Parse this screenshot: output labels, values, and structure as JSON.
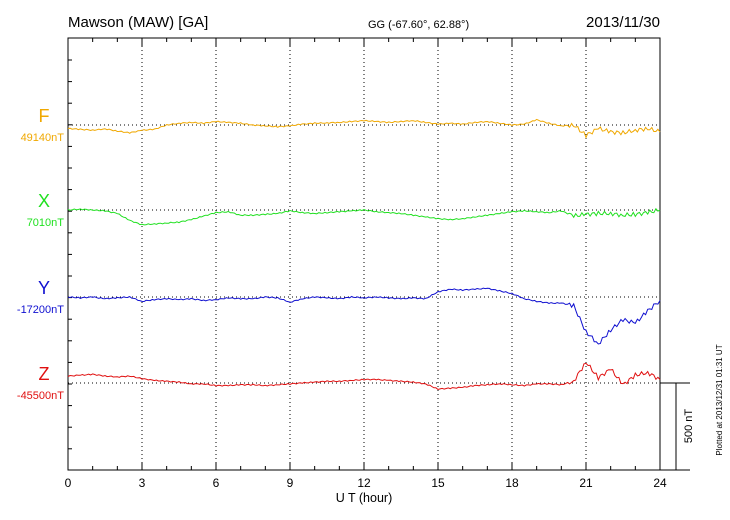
{
  "header": {
    "station": "Mawson (MAW)  [GA]",
    "coordinates": "GG (-67.60°,  62.88°)",
    "date": "2013/11/30"
  },
  "side_note": "Plotted at 2013/12/31 01:31  UT",
  "scale_label": "500 nT",
  "chart_data": {
    "type": "line",
    "xlabel": "U T (hour)",
    "xlim": [
      0,
      24
    ],
    "xticks": [
      "0",
      "3",
      "6",
      "9",
      "12",
      "15",
      "18",
      "21",
      "24"
    ],
    "x": [
      0,
      0.5,
      1,
      1.5,
      2,
      2.5,
      3,
      3.5,
      4,
      4.5,
      5,
      5.5,
      6,
      6.5,
      7,
      7.5,
      8,
      8.5,
      9,
      9.5,
      10,
      10.5,
      11,
      11.5,
      12,
      12.5,
      13,
      13.5,
      14,
      14.5,
      15,
      15.5,
      16,
      16.5,
      17,
      17.5,
      18,
      18.5,
      19,
      19.5,
      20,
      20.5,
      21,
      21.5,
      22,
      22.5,
      23,
      23.5,
      24
    ],
    "y_unit_scale_nT": 500,
    "grid": true,
    "series": [
      {
        "name": "F",
        "baseline_label": "49140nT",
        "color": "#f0a800",
        "baseline_nT": 49140,
        "values": [
          -20,
          -25,
          -30,
          -22,
          -35,
          -45,
          -30,
          -25,
          0,
          10,
          15,
          10,
          20,
          15,
          10,
          0,
          -5,
          -10,
          -5,
          5,
          10,
          12,
          15,
          20,
          25,
          20,
          15,
          20,
          25,
          15,
          5,
          10,
          5,
          15,
          20,
          10,
          0,
          5,
          30,
          10,
          -5,
          0,
          -60,
          -20,
          -40,
          -45,
          -30,
          -20,
          -40
        ]
      },
      {
        "name": "X",
        "baseline_label": "7010nT",
        "color": "#20e020",
        "baseline_nT": 7010,
        "values": [
          0,
          5,
          0,
          -5,
          -20,
          -60,
          -85,
          -80,
          -75,
          -70,
          -55,
          -35,
          -15,
          -10,
          -30,
          -30,
          -25,
          -20,
          -5,
          -15,
          -20,
          -15,
          -10,
          -5,
          0,
          -10,
          -15,
          -20,
          -30,
          -40,
          -50,
          -55,
          -50,
          -40,
          -30,
          -20,
          -10,
          -5,
          -10,
          -15,
          -5,
          -35,
          -25,
          -20,
          -20,
          -30,
          -25,
          -15,
          0
        ]
      },
      {
        "name": "Y",
        "baseline_label": "-17200nT",
        "color": "#1010d0",
        "baseline_nT": -17200,
        "values": [
          0,
          -5,
          0,
          -10,
          -5,
          0,
          -25,
          -15,
          -10,
          -15,
          -10,
          -20,
          -15,
          -5,
          -10,
          -10,
          0,
          -5,
          -30,
          -10,
          0,
          -5,
          -10,
          0,
          -5,
          0,
          -5,
          -10,
          -5,
          -10,
          30,
          45,
          40,
          45,
          50,
          35,
          20,
          -10,
          -25,
          -35,
          -35,
          -50,
          -200,
          -270,
          -190,
          -130,
          -150,
          -80,
          -20
        ]
      },
      {
        "name": "Z",
        "baseline_label": "-45500nT",
        "color": "#e01010",
        "baseline_nT": -45500,
        "values": [
          40,
          45,
          50,
          40,
          35,
          40,
          25,
          15,
          10,
          5,
          -5,
          -5,
          -15,
          -15,
          -10,
          -10,
          -15,
          -10,
          -5,
          0,
          5,
          10,
          10,
          15,
          20,
          20,
          15,
          10,
          5,
          -5,
          -35,
          -30,
          -25,
          -15,
          -10,
          -5,
          -10,
          -15,
          -5,
          -5,
          -10,
          10,
          120,
          30,
          80,
          -10,
          45,
          60,
          20
        ]
      }
    ]
  }
}
